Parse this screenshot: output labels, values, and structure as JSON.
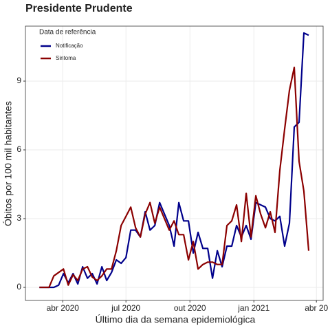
{
  "chart_data": {
    "type": "line",
    "title": "Presidente Prudente",
    "xlabel": "Último dia da semana epidemiológica",
    "ylabel": "Óbitos por 100 mil habitantes",
    "legend_title": "Data de referência",
    "legend": "top-left",
    "grid": true,
    "x": [
      0,
      1,
      2,
      3,
      4,
      5,
      6,
      7,
      8,
      9,
      10,
      11,
      12,
      13,
      14,
      15,
      16,
      17,
      18,
      19,
      20,
      21,
      22,
      23,
      24,
      25,
      26,
      27,
      28,
      29,
      30,
      31,
      32,
      33,
      34,
      35,
      36,
      37,
      38,
      39,
      40,
      41,
      42,
      43,
      44,
      45,
      46,
      47,
      48,
      49,
      50,
      51,
      52,
      53,
      54,
      55,
      56
    ],
    "xlim": [
      -2.9,
      59
    ],
    "xticks": [
      {
        "value": 4.86,
        "label": "abr 2020"
      },
      {
        "value": 18.0,
        "label": "jul 2020"
      },
      {
        "value": 31.3,
        "label": "out 2020"
      },
      {
        "value": 44.6,
        "label": "jan 2021"
      },
      {
        "value": 57.6,
        "label": "abr 20"
      }
    ],
    "ylim": [
      -0.57,
      11.4
    ],
    "yticks": [
      0,
      3,
      6,
      9
    ],
    "series": [
      {
        "name": "Notificação",
        "color": "#00008b",
        "values": [
          0,
          0,
          0,
          0,
          0.1,
          0.6,
          0.2,
          0.6,
          0.15,
          0.9,
          0.4,
          0.6,
          0.15,
          0.9,
          0.3,
          0.65,
          1.2,
          1.05,
          1.3,
          2.5,
          2.5,
          2.2,
          3.3,
          2.5,
          2.7,
          3.7,
          3.2,
          2.7,
          1.8,
          3.7,
          2.9,
          2.9,
          1.5,
          2.4,
          1.7,
          1.7,
          0.4,
          1.6,
          0.9,
          1.8,
          1.8,
          2.7,
          2.2,
          2.7,
          2.1,
          3.7,
          3.6,
          3.5,
          3.0,
          2.9,
          3.1,
          1.8,
          2.8,
          7.0,
          7.2,
          11.1,
          11.0
        ]
      },
      {
        "name": "Sintoma",
        "color": "#8b0000",
        "values": [
          0,
          0,
          0,
          0.5,
          0.65,
          0.8,
          0.1,
          0.55,
          0.3,
          0.8,
          0.9,
          0.45,
          0.3,
          0.5,
          0.8,
          0.8,
          1.6,
          2.7,
          3.1,
          3.5,
          2.6,
          2.2,
          3.2,
          3.7,
          2.8,
          3.5,
          3.0,
          2.5,
          2.9,
          2.3,
          2.3,
          1.2,
          2.0,
          0.8,
          1.0,
          1.1,
          1.1,
          1.0,
          1.0,
          2.7,
          2.9,
          3.6,
          2.0,
          4.1,
          2.2,
          4.0,
          3.2,
          2.6,
          3.3,
          2.4,
          5.1,
          6.9,
          8.6,
          9.6,
          5.5,
          4.2,
          1.6
        ]
      }
    ]
  }
}
